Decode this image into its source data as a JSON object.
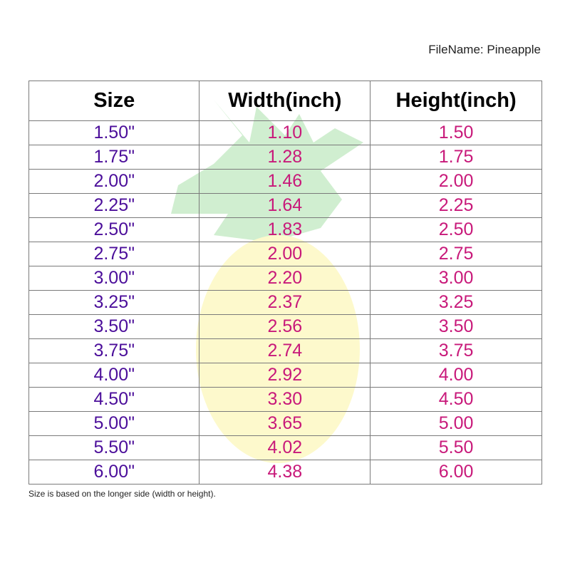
{
  "filename_label": "FileName: Pineapple",
  "table": {
    "headers": [
      "Size",
      "Width(inch)",
      "Height(inch)"
    ],
    "rows": [
      [
        "1.50\"",
        "1.10",
        "1.50"
      ],
      [
        "1.75\"",
        "1.28",
        "1.75"
      ],
      [
        "2.00\"",
        "1.46",
        "2.00"
      ],
      [
        "2.25\"",
        "1.64",
        "2.25"
      ],
      [
        "2.50\"",
        "1.83",
        "2.50"
      ],
      [
        "2.75\"",
        "2.00",
        "2.75"
      ],
      [
        "3.00\"",
        "2.20",
        "3.00"
      ],
      [
        "3.25\"",
        "2.37",
        "3.25"
      ],
      [
        "3.50\"",
        "2.56",
        "3.50"
      ],
      [
        "3.75\"",
        "2.74",
        "3.75"
      ],
      [
        "4.00\"",
        "2.92",
        "4.00"
      ],
      [
        "4.50\"",
        "3.30",
        "4.50"
      ],
      [
        "5.00\"",
        "3.65",
        "5.00"
      ],
      [
        "5.50\"",
        "4.02",
        "5.50"
      ],
      [
        "6.00\"",
        "4.38",
        "6.00"
      ]
    ]
  },
  "note": "Size is based on the longer side (width or height).",
  "colors": {
    "size_text": "#4b0e9a",
    "value_text": "#c8197a",
    "border": "#7a7a7a"
  },
  "watermark": "pineapple-cookie-image"
}
